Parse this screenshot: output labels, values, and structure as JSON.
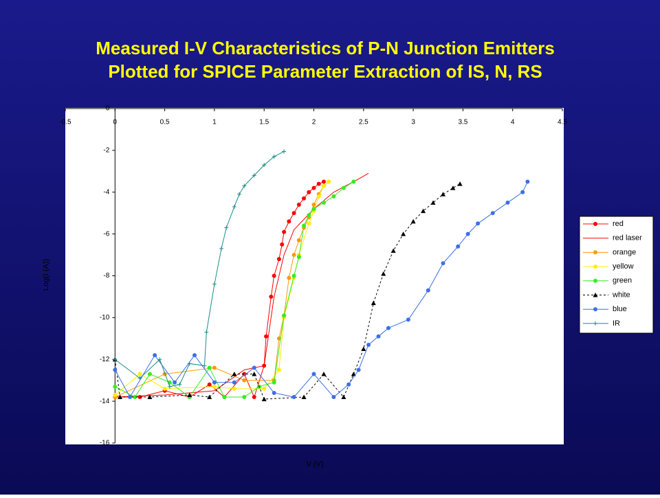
{
  "chart_data": {
    "type": "line",
    "title": "Measured I-V Characteristics of P-N Junction Emitters",
    "subtitle": "Plotted for SPICE Parameter Extraction of IS, N, RS",
    "x_label": "V (V)",
    "y_label": "Log(I (A))",
    "xlim": [
      -0.5,
      4.5
    ],
    "xticks": [
      -0.5,
      0,
      0.5,
      1,
      1.5,
      2,
      2.5,
      3,
      3.5,
      4,
      4.5
    ],
    "ylim": [
      -16,
      0
    ],
    "yticks": [
      0,
      -2,
      -4,
      -6,
      -8,
      -10,
      -12,
      -14,
      -16
    ],
    "legend": "right",
    "series": [
      {
        "name": "red",
        "color": "#ff0000",
        "marker": "circle",
        "x": [
          0,
          0.25,
          0.5,
          0.75,
          0.95,
          1.1,
          1.3,
          1.4,
          1.5,
          1.52,
          1.57,
          1.6,
          1.65,
          1.68,
          1.7,
          1.75,
          1.8,
          1.85,
          1.9,
          1.95,
          2.0,
          2.05,
          2.1
        ],
        "values": [
          -13.8,
          -13.8,
          -13.5,
          -13.8,
          -13.2,
          -13.8,
          -12.7,
          -13.8,
          -12.3,
          -10.9,
          -9,
          -8,
          -7.2,
          -6.5,
          -5.9,
          -5.4,
          -5,
          -4.6,
          -4.3,
          -4,
          -3.8,
          -3.6,
          -3.5
        ]
      },
      {
        "name": "red laser",
        "color": "#ff0000",
        "marker": "none",
        "x": [
          0,
          0.5,
          1,
          1.3,
          1.5,
          1.6,
          1.7,
          1.8,
          2.0,
          2.2,
          2.4,
          2.55
        ],
        "values": [
          -13.8,
          -13.7,
          -13.5,
          -12.5,
          -12.3,
          -9,
          -7,
          -5.8,
          -4.8,
          -4.0,
          -3.5,
          -3.1
        ]
      },
      {
        "name": "orange",
        "color": "#ff9900",
        "marker": "circle",
        "x": [
          0,
          0.5,
          1,
          1.3,
          1.6,
          1.65,
          1.7,
          1.75,
          1.8,
          1.85,
          1.9,
          1.95,
          2.0,
          2.05,
          2.1,
          2.15
        ],
        "values": [
          -13.8,
          -12.7,
          -12.4,
          -13,
          -13,
          -11,
          -9.9,
          -8.1,
          -7.0,
          -6.3,
          -5.7,
          -5.2,
          -4.6,
          -4.1,
          -3.7,
          -3.5
        ]
      },
      {
        "name": "yellow",
        "color": "#ffee00",
        "marker": "circle",
        "x": [
          0,
          0.25,
          0.5,
          1,
          1.2,
          1.5,
          1.65,
          1.7,
          1.8,
          1.85,
          1.95,
          2.0,
          2.05,
          2.1,
          2.15
        ],
        "values": [
          -13.7,
          -12.7,
          -13.4,
          -13.3,
          -13.4,
          -13.4,
          -12.5,
          -10,
          -8.1,
          -7,
          -5.5,
          -4.9,
          -4.2,
          -3.7,
          -3.5
        ]
      },
      {
        "name": "green",
        "color": "#33ee22",
        "marker": "circle",
        "x": [
          0,
          0.2,
          0.35,
          0.55,
          0.75,
          0.95,
          1.1,
          1.3,
          1.45,
          1.6,
          1.7,
          1.8,
          1.85,
          1.9,
          1.95,
          2.0,
          2.1,
          2.2,
          2.3,
          2.4
        ],
        "values": [
          -13.3,
          -13.8,
          -12.7,
          -13.1,
          -13.8,
          -12.4,
          -13.8,
          -13.8,
          -13.3,
          -13.1,
          -9.9,
          -8,
          -7.1,
          -5.6,
          -5.1,
          -4.8,
          -4.5,
          -4.2,
          -3.8,
          -3.5
        ]
      },
      {
        "name": "white",
        "color": "#000000",
        "marker": "triangle",
        "dash": true,
        "x": [
          0,
          0.05,
          0.35,
          0.75,
          0.95,
          1.2,
          1.4,
          1.5,
          1.9,
          2.1,
          2.3,
          2.4,
          2.5,
          2.6,
          2.7,
          2.8,
          2.9,
          3.0,
          3.1,
          3.2,
          3.3,
          3.4,
          3.47
        ],
        "values": [
          -12,
          -13.8,
          -13.8,
          -13.7,
          -13.8,
          -12.7,
          -12.7,
          -13.9,
          -13.8,
          -12.7,
          -13.8,
          -12.7,
          -11.5,
          -9.3,
          -7.9,
          -6.8,
          -6,
          -5.4,
          -4.9,
          -4.5,
          -4.1,
          -3.8,
          -3.6
        ]
      },
      {
        "name": "blue",
        "color": "#3d6fe8",
        "marker": "circle",
        "x": [
          0,
          0.15,
          0.4,
          0.6,
          0.8,
          1.0,
          1.2,
          1.4,
          1.6,
          1.8,
          2.0,
          2.2,
          2.35,
          2.45,
          2.55,
          2.65,
          2.75,
          2.95,
          3.15,
          3.3,
          3.45,
          3.55,
          3.65,
          3.8,
          3.95,
          4.1,
          4.15
        ],
        "values": [
          -12.5,
          -13.8,
          -11.8,
          -13.1,
          -11.8,
          -13.1,
          -13.1,
          -12.4,
          -13.6,
          -13.8,
          -12.7,
          -13.8,
          -13.2,
          -12.5,
          -11.3,
          -10.9,
          -10.5,
          -10.1,
          -8.7,
          -7.4,
          -6.6,
          -6.0,
          -5.5,
          -5.0,
          -4.5,
          -4.0,
          -3.5
        ]
      },
      {
        "name": "IR",
        "color": "#1a8a8a",
        "marker": "plus",
        "x": [
          0,
          0.25,
          0.45,
          0.55,
          0.65,
          0.75,
          0.9,
          0.92,
          1.0,
          1.07,
          1.12,
          1.2,
          1.25,
          1.3,
          1.4,
          1.5,
          1.6,
          1.7
        ],
        "values": [
          -12,
          -12.9,
          -12,
          -13.3,
          -13.2,
          -12.2,
          -12.3,
          -10.7,
          -8.4,
          -6.7,
          -5.7,
          -4.7,
          -4.1,
          -3.7,
          -3.2,
          -2.7,
          -2.3,
          -2.05
        ]
      }
    ]
  }
}
